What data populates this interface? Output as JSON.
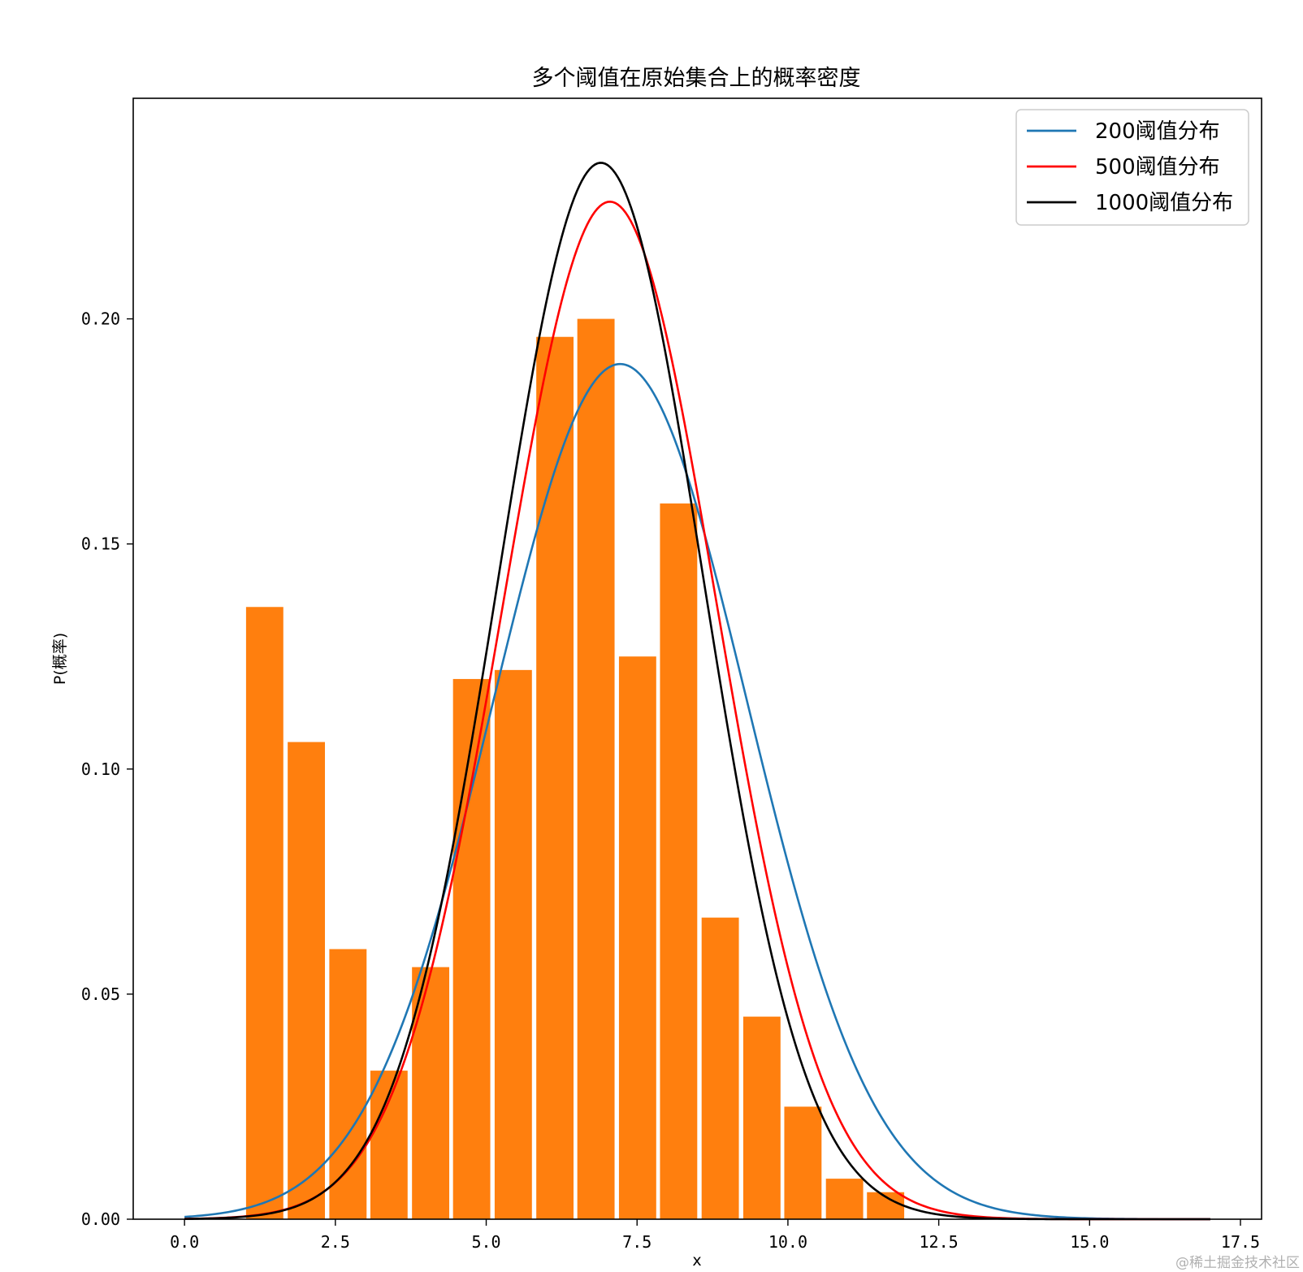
{
  "chart_data": {
    "type": "histogram_with_density_curves",
    "title": "多个阈值在原始集合上的概率密度",
    "xlabel": "x",
    "ylabel": "P(概率)",
    "xlim": [
      -0.85,
      17.85
    ],
    "ylim": [
      0,
      0.249
    ],
    "x_ticks": [
      0.0,
      2.5,
      5.0,
      7.5,
      10.0,
      12.5,
      15.0,
      17.5
    ],
    "x_tick_labels": [
      "0.0",
      "2.5",
      "5.0",
      "7.5",
      "10.0",
      "12.5",
      "15.0",
      "17.5"
    ],
    "y_ticks": [
      0.0,
      0.05,
      0.1,
      0.15,
      0.2
    ],
    "y_tick_labels": [
      "0.00",
      "0.05",
      "0.10",
      "0.15",
      "0.20"
    ],
    "histogram": {
      "color": "#ff7f0e",
      "bin_width": 0.686,
      "bar_width_fraction": 0.9,
      "bins": [
        {
          "x0": 1.02,
          "value": 0.136
        },
        {
          "x0": 1.71,
          "value": 0.106
        },
        {
          "x0": 2.4,
          "value": 0.06
        },
        {
          "x0": 3.08,
          "value": 0.033
        },
        {
          "x0": 3.77,
          "value": 0.056
        },
        {
          "x0": 4.45,
          "value": 0.12
        },
        {
          "x0": 5.14,
          "value": 0.122
        },
        {
          "x0": 5.83,
          "value": 0.196
        },
        {
          "x0": 6.51,
          "value": 0.2
        },
        {
          "x0": 7.2,
          "value": 0.125
        },
        {
          "x0": 7.88,
          "value": 0.159
        },
        {
          "x0": 8.57,
          "value": 0.067
        },
        {
          "x0": 9.26,
          "value": 0.045
        },
        {
          "x0": 9.94,
          "value": 0.025
        },
        {
          "x0": 10.63,
          "value": 0.009
        },
        {
          "x0": 11.31,
          "value": 0.006
        }
      ]
    },
    "curves_x_range": [
      0.0,
      17.0
    ],
    "series": [
      {
        "name": "200阈值分布",
        "color": "#1f77b4",
        "mean": 7.22,
        "std": 2.1
      },
      {
        "name": "500阈值分布",
        "color": "#ff0000",
        "mean": 7.05,
        "std": 1.765
      },
      {
        "name": "1000阈值分布",
        "color": "#000000",
        "mean": 6.9,
        "std": 1.7
      }
    ],
    "legend_position": "top-right"
  },
  "watermark": "@稀土掘金技术社区"
}
